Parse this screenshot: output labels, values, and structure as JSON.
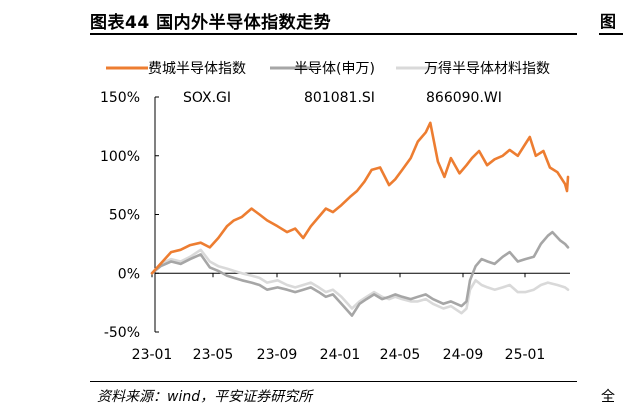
{
  "figure": {
    "title": "图表44 国内外半导体指数走势",
    "source": "资料来源：wind，平安证券研究所",
    "right_fragment_top": "图",
    "right_fragment_bottom": "全"
  },
  "chart_data": {
    "type": "line",
    "title": "",
    "xlabel": "",
    "ylabel": "",
    "x_ticks": [
      "23-01",
      "23-05",
      "23-09",
      "24-01",
      "24-05",
      "24-09",
      "25-01"
    ],
    "y_ticks": [
      "150%",
      "100%",
      "50%",
      "0%",
      "-50%"
    ],
    "ylim": [
      -50,
      150
    ],
    "grid": false,
    "legend_position": "top",
    "series": [
      {
        "name": "费城半导体指数",
        "code": "SOX.GI",
        "color": "#ED7D31",
        "points": [
          [
            "2023-01-03",
            0
          ],
          [
            "2023-01-20",
            8
          ],
          [
            "2023-02-10",
            18
          ],
          [
            "2023-03-01",
            20
          ],
          [
            "2023-03-20",
            24
          ],
          [
            "2023-04-10",
            26
          ],
          [
            "2023-04-28",
            22
          ],
          [
            "2023-05-15",
            30
          ],
          [
            "2023-06-01",
            40
          ],
          [
            "2023-06-15",
            45
          ],
          [
            "2023-07-01",
            48
          ],
          [
            "2023-07-20",
            55
          ],
          [
            "2023-08-05",
            50
          ],
          [
            "2023-08-20",
            45
          ],
          [
            "2023-09-10",
            40
          ],
          [
            "2023-09-29",
            35
          ],
          [
            "2023-10-15",
            38
          ],
          [
            "2023-10-31",
            30
          ],
          [
            "2023-11-15",
            40
          ],
          [
            "2023-12-01",
            48
          ],
          [
            "2023-12-15",
            55
          ],
          [
            "2023-12-29",
            52
          ],
          [
            "2024-01-15",
            58
          ],
          [
            "2024-02-01",
            65
          ],
          [
            "2024-02-15",
            70
          ],
          [
            "2024-03-01",
            78
          ],
          [
            "2024-03-15",
            88
          ],
          [
            "2024-04-01",
            90
          ],
          [
            "2024-04-19",
            75
          ],
          [
            "2024-05-01",
            80
          ],
          [
            "2024-05-15",
            88
          ],
          [
            "2024-06-01",
            98
          ],
          [
            "2024-06-15",
            112
          ],
          [
            "2024-07-01",
            120
          ],
          [
            "2024-07-10",
            128
          ],
          [
            "2024-07-25",
            95
          ],
          [
            "2024-08-07",
            82
          ],
          [
            "2024-08-20",
            98
          ],
          [
            "2024-09-06",
            85
          ],
          [
            "2024-09-20",
            92
          ],
          [
            "2024-10-01",
            98
          ],
          [
            "2024-10-15",
            104
          ],
          [
            "2024-10-31",
            92
          ],
          [
            "2024-11-15",
            97
          ],
          [
            "2024-12-01",
            100
          ],
          [
            "2024-12-15",
            105
          ],
          [
            "2024-12-31",
            100
          ],
          [
            "2025-01-15",
            110
          ],
          [
            "2025-01-24",
            116
          ],
          [
            "2025-02-05",
            100
          ],
          [
            "2025-02-20",
            104
          ],
          [
            "2025-03-05",
            90
          ],
          [
            "2025-03-20",
            86
          ],
          [
            "2025-04-04",
            76
          ],
          [
            "2025-04-08",
            70
          ],
          [
            "2025-04-10",
            82
          ]
        ]
      },
      {
        "name": "半导体(申万)",
        "code": "801081.SI",
        "color": "#A6A6A6",
        "points": [
          [
            "2023-01-03",
            0
          ],
          [
            "2023-01-20",
            6
          ],
          [
            "2023-02-10",
            10
          ],
          [
            "2023-03-01",
            8
          ],
          [
            "2023-03-20",
            12
          ],
          [
            "2023-04-10",
            16
          ],
          [
            "2023-04-28",
            5
          ],
          [
            "2023-05-15",
            2
          ],
          [
            "2023-06-01",
            -2
          ],
          [
            "2023-06-15",
            -4
          ],
          [
            "2023-07-01",
            -6
          ],
          [
            "2023-07-20",
            -8
          ],
          [
            "2023-08-05",
            -10
          ],
          [
            "2023-08-20",
            -14
          ],
          [
            "2023-09-10",
            -12
          ],
          [
            "2023-09-29",
            -14
          ],
          [
            "2023-10-15",
            -16
          ],
          [
            "2023-10-31",
            -14
          ],
          [
            "2023-11-15",
            -12
          ],
          [
            "2023-12-01",
            -16
          ],
          [
            "2023-12-15",
            -20
          ],
          [
            "2023-12-29",
            -18
          ],
          [
            "2024-01-15",
            -26
          ],
          [
            "2024-02-05",
            -36
          ],
          [
            "2024-02-20",
            -26
          ],
          [
            "2024-03-05",
            -22
          ],
          [
            "2024-03-20",
            -18
          ],
          [
            "2024-04-05",
            -22
          ],
          [
            "2024-04-19",
            -20
          ],
          [
            "2024-05-01",
            -18
          ],
          [
            "2024-05-15",
            -20
          ],
          [
            "2024-06-01",
            -22
          ],
          [
            "2024-06-15",
            -20
          ],
          [
            "2024-07-01",
            -18
          ],
          [
            "2024-07-15",
            -22
          ],
          [
            "2024-08-05",
            -26
          ],
          [
            "2024-08-20",
            -24
          ],
          [
            "2024-09-10",
            -28
          ],
          [
            "2024-09-20",
            -24
          ],
          [
            "2024-09-27",
            -6
          ],
          [
            "2024-10-08",
            6
          ],
          [
            "2024-10-20",
            12
          ],
          [
            "2024-11-01",
            10
          ],
          [
            "2024-11-15",
            8
          ],
          [
            "2024-12-01",
            14
          ],
          [
            "2024-12-15",
            18
          ],
          [
            "2024-12-31",
            10
          ],
          [
            "2025-01-15",
            12
          ],
          [
            "2025-02-01",
            14
          ],
          [
            "2025-02-15",
            25
          ],
          [
            "2025-03-01",
            32
          ],
          [
            "2025-03-10",
            35
          ],
          [
            "2025-03-25",
            28
          ],
          [
            "2025-04-04",
            25
          ],
          [
            "2025-04-10",
            22
          ]
        ]
      },
      {
        "name": "万得半导体材料指数",
        "code": "866090.WI",
        "color": "#D9D9D9",
        "points": [
          [
            "2023-01-03",
            0
          ],
          [
            "2023-01-20",
            8
          ],
          [
            "2023-02-10",
            12
          ],
          [
            "2023-03-01",
            10
          ],
          [
            "2023-03-20",
            14
          ],
          [
            "2023-04-10",
            20
          ],
          [
            "2023-04-28",
            10
          ],
          [
            "2023-05-15",
            6
          ],
          [
            "2023-06-01",
            4
          ],
          [
            "2023-06-15",
            2
          ],
          [
            "2023-07-01",
            0
          ],
          [
            "2023-07-20",
            -2
          ],
          [
            "2023-08-05",
            -4
          ],
          [
            "2023-08-20",
            -8
          ],
          [
            "2023-09-10",
            -6
          ],
          [
            "2023-09-29",
            -10
          ],
          [
            "2023-10-15",
            -12
          ],
          [
            "2023-10-31",
            -10
          ],
          [
            "2023-11-15",
            -8
          ],
          [
            "2023-12-01",
            -12
          ],
          [
            "2023-12-15",
            -16
          ],
          [
            "2023-12-29",
            -14
          ],
          [
            "2024-01-15",
            -20
          ],
          [
            "2024-02-05",
            -30
          ],
          [
            "2024-02-20",
            -24
          ],
          [
            "2024-03-05",
            -20
          ],
          [
            "2024-03-20",
            -16
          ],
          [
            "2024-04-05",
            -20
          ],
          [
            "2024-04-19",
            -22
          ],
          [
            "2024-05-01",
            -20
          ],
          [
            "2024-05-15",
            -22
          ],
          [
            "2024-06-01",
            -24
          ],
          [
            "2024-06-15",
            -24
          ],
          [
            "2024-07-01",
            -22
          ],
          [
            "2024-07-15",
            -26
          ],
          [
            "2024-08-05",
            -30
          ],
          [
            "2024-08-20",
            -28
          ],
          [
            "2024-09-10",
            -34
          ],
          [
            "2024-09-20",
            -30
          ],
          [
            "2024-09-27",
            -14
          ],
          [
            "2024-10-08",
            -6
          ],
          [
            "2024-10-20",
            -10
          ],
          [
            "2024-11-01",
            -12
          ],
          [
            "2024-11-15",
            -14
          ],
          [
            "2024-12-01",
            -12
          ],
          [
            "2024-12-15",
            -10
          ],
          [
            "2024-12-31",
            -16
          ],
          [
            "2025-01-15",
            -16
          ],
          [
            "2025-02-01",
            -14
          ],
          [
            "2025-02-15",
            -10
          ],
          [
            "2025-03-01",
            -8
          ],
          [
            "2025-03-20",
            -10
          ],
          [
            "2025-04-04",
            -12
          ],
          [
            "2025-04-10",
            -14
          ]
        ]
      }
    ]
  }
}
